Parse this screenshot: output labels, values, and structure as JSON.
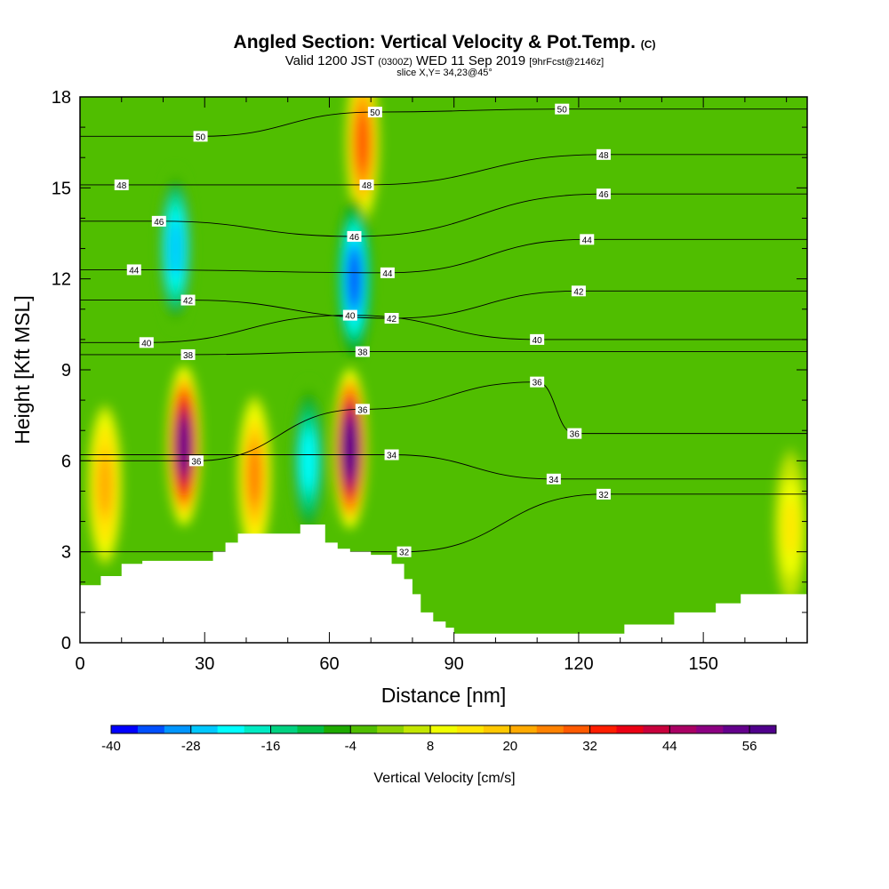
{
  "title": {
    "main": "Angled Section: Vertical Velocity & Pot.Temp.",
    "main_unit": "(C)",
    "valid_prefix": "Valid 1200 JST",
    "valid_z": "(0300Z)",
    "valid_date": "WED 11 Sep 2019",
    "valid_fcst": "[9hrFcst@2146z]",
    "slice": "slice X,Y= 34,23@45°"
  },
  "chart_data": {
    "type": "heatmap",
    "xlabel": "Distance [nm]",
    "ylabel": "Height [Kft MSL]",
    "xlim": [
      0,
      175
    ],
    "ylim": [
      0,
      18
    ],
    "xticks": [
      0,
      30,
      60,
      90,
      120,
      150
    ],
    "yticks": [
      0,
      3,
      6,
      9,
      12,
      15,
      18
    ],
    "colorbar": {
      "title": "Vertical Velocity [cm/s]",
      "min": -40,
      "max": 60,
      "step": 4,
      "tick_labels": [
        -40,
        -28,
        -16,
        -4,
        8,
        20,
        32,
        44,
        56
      ],
      "colors": [
        "#0000ff",
        "#0050ff",
        "#0096ff",
        "#00c8ff",
        "#00ffff",
        "#00ebc3",
        "#00d282",
        "#00be46",
        "#1eaa00",
        "#50be00",
        "#8cd200",
        "#c3e600",
        "#f0ff00",
        "#ffe600",
        "#ffc800",
        "#ffaa00",
        "#ff8200",
        "#ff5a00",
        "#ff1e00",
        "#eb0014",
        "#c8003c",
        "#aa0064",
        "#8c0082",
        "#64008c",
        "#50008c"
      ]
    },
    "terrain_height_kft": [
      [
        0,
        1.9
      ],
      [
        5,
        2.2
      ],
      [
        10,
        2.6
      ],
      [
        15,
        2.7
      ],
      [
        30,
        2.7
      ],
      [
        32,
        3.0
      ],
      [
        35,
        3.3
      ],
      [
        38,
        3.6
      ],
      [
        52,
        3.6
      ],
      [
        53,
        3.9
      ],
      [
        58,
        3.9
      ],
      [
        59,
        3.3
      ],
      [
        62,
        3.1
      ],
      [
        65,
        3.0
      ],
      [
        70,
        2.9
      ],
      [
        75,
        2.6
      ],
      [
        78,
        2.1
      ],
      [
        80,
        1.6
      ],
      [
        82,
        1.0
      ],
      [
        85,
        0.7
      ],
      [
        88,
        0.5
      ],
      [
        90,
        0.3
      ],
      [
        130,
        0.3
      ],
      [
        131,
        0.6
      ],
      [
        140,
        0.6
      ],
      [
        143,
        1.0
      ],
      [
        152,
        1.0
      ],
      [
        153,
        1.3
      ],
      [
        158,
        1.3
      ],
      [
        159,
        1.6
      ],
      [
        175,
        1.6
      ]
    ],
    "updrafts": [
      {
        "x": 6,
        "y": 5.2,
        "w_cms": 22
      },
      {
        "x": 25,
        "y": 6.5,
        "w_cms": 54
      },
      {
        "x": 42,
        "y": 5.5,
        "w_cms": 25
      },
      {
        "x": 65,
        "y": 6.4,
        "w_cms": 60
      },
      {
        "x": 68,
        "y": 16.5,
        "w_cms": 30
      },
      {
        "x": 171,
        "y": 3.8,
        "w_cms": 12
      }
    ],
    "downdrafts": [
      {
        "x": 23,
        "y": 13.0,
        "w_cms": -28
      },
      {
        "x": 55,
        "y": 6.0,
        "w_cms": -24
      },
      {
        "x": 66,
        "y": 12.0,
        "w_cms": -36
      }
    ],
    "theta_contour_labels": [
      {
        "value": "32",
        "x": 78,
        "y": 3.0
      },
      {
        "value": "32",
        "x": 126,
        "y": 4.9
      },
      {
        "value": "34",
        "x": 75,
        "y": 6.2
      },
      {
        "value": "34",
        "x": 114,
        "y": 5.4
      },
      {
        "value": "36",
        "x": 28,
        "y": 6.0
      },
      {
        "value": "36",
        "x": 119,
        "y": 6.9
      },
      {
        "value": "36",
        "x": 68,
        "y": 7.7
      },
      {
        "value": "36",
        "x": 110,
        "y": 8.6
      },
      {
        "value": "38",
        "x": 26,
        "y": 9.5
      },
      {
        "value": "38",
        "x": 68,
        "y": 9.6
      },
      {
        "value": "40",
        "x": 16,
        "y": 9.9
      },
      {
        "value": "40",
        "x": 110,
        "y": 10.0
      },
      {
        "value": "40",
        "x": 65,
        "y": 10.8
      },
      {
        "value": "42",
        "x": 26,
        "y": 11.3
      },
      {
        "value": "42",
        "x": 75,
        "y": 10.7
      },
      {
        "value": "42",
        "x": 120,
        "y": 11.6
      },
      {
        "value": "44",
        "x": 13,
        "y": 12.3
      },
      {
        "value": "44",
        "x": 74,
        "y": 12.2
      },
      {
        "value": "44",
        "x": 122,
        "y": 13.3
      },
      {
        "value": "46",
        "x": 19,
        "y": 13.9
      },
      {
        "value": "46",
        "x": 66,
        "y": 13.4
      },
      {
        "value": "46",
        "x": 126,
        "y": 14.8
      },
      {
        "value": "48",
        "x": 10,
        "y": 15.1
      },
      {
        "value": "48",
        "x": 69,
        "y": 15.1
      },
      {
        "value": "48",
        "x": 126,
        "y": 16.1
      },
      {
        "value": "50",
        "x": 29,
        "y": 16.7
      },
      {
        "value": "50",
        "x": 71,
        "y": 17.5
      },
      {
        "value": "50",
        "x": 116,
        "y": 17.6
      }
    ]
  }
}
